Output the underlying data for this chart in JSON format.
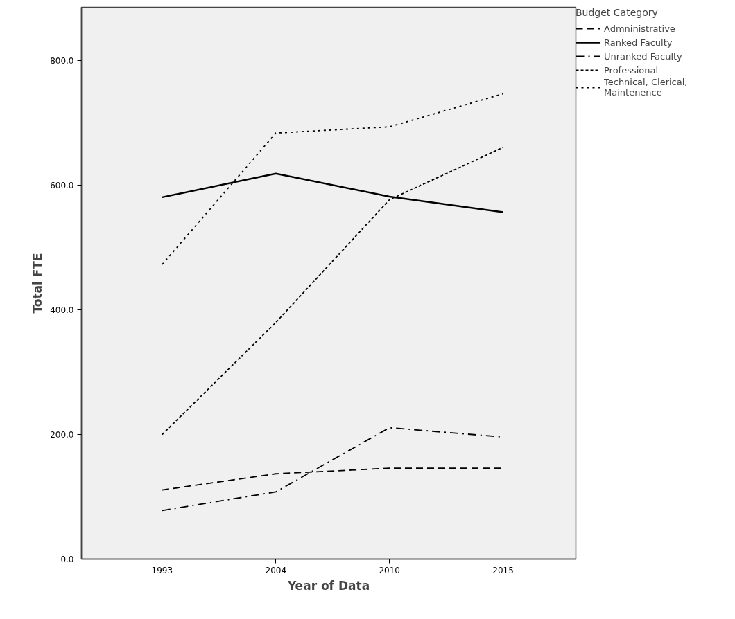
{
  "chart_data": {
    "type": "line",
    "xlabel": "Year of Data",
    "ylabel": "Total FTE",
    "legend_title": "Budget Category",
    "legend": "right",
    "grid": false,
    "categories": [
      "1993",
      "2004",
      "2010",
      "2015"
    ],
    "ylim": [
      0,
      886
    ],
    "yticks": [
      {
        "value": 0,
        "label": "0.0"
      },
      {
        "value": 200,
        "label": "200.0"
      },
      {
        "value": 400,
        "label": "400.0"
      },
      {
        "value": 600,
        "label": "600.0"
      },
      {
        "value": 800,
        "label": "800.0"
      }
    ],
    "series": [
      {
        "name": "Admninistrative",
        "color": "#000000",
        "line_style": "dashed",
        "values": [
          111,
          137,
          146,
          146
        ]
      },
      {
        "name": "Ranked Faculty",
        "color": "#000000",
        "line_style": "solid",
        "values": [
          581,
          619,
          582,
          557
        ]
      },
      {
        "name": "Unranked Faculty",
        "color": "#000000",
        "line_style": "dashdot",
        "values": [
          78,
          108,
          211,
          196
        ]
      },
      {
        "name": "Professional",
        "color": "#000000",
        "line_style": "dotted",
        "values": [
          200,
          380,
          577,
          661
        ]
      },
      {
        "name": "Technical, Clerical, Maintenence",
        "color": "#000000",
        "line_style": "loosely dotted",
        "values": [
          473,
          684,
          694,
          747
        ]
      }
    ]
  }
}
